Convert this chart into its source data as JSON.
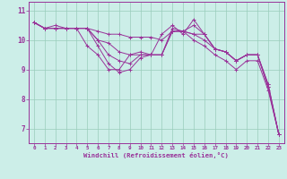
{
  "bg_color": "#cceee8",
  "grid_color": "#99ccbb",
  "line_color": "#993399",
  "xlabel": "Windchill (Refroidissement éolien,°C)",
  "xlabel_color": "#993399",
  "tick_color": "#993399",
  "spine_color": "#993399",
  "ylim": [
    6.5,
    11.3
  ],
  "xlim": [
    -0.5,
    23.5
  ],
  "yticks": [
    7,
    8,
    9,
    10,
    11
  ],
  "xticks": [
    0,
    1,
    2,
    3,
    4,
    5,
    6,
    7,
    8,
    9,
    10,
    11,
    12,
    13,
    14,
    15,
    16,
    17,
    18,
    19,
    20,
    21,
    22,
    23
  ],
  "series": [
    [
      10.6,
      10.4,
      10.4,
      10.4,
      10.4,
      10.4,
      10.3,
      10.2,
      10.2,
      10.1,
      10.1,
      10.1,
      10.0,
      10.3,
      10.3,
      10.5,
      10.2,
      9.7,
      9.6,
      9.3,
      9.5,
      9.5,
      8.5,
      6.8
    ],
    [
      10.6,
      10.4,
      10.5,
      10.4,
      10.4,
      10.4,
      10.0,
      9.9,
      9.6,
      9.5,
      9.5,
      9.5,
      10.2,
      10.5,
      10.2,
      10.7,
      10.2,
      9.7,
      9.6,
      9.3,
      9.5,
      9.5,
      8.4,
      6.8
    ],
    [
      10.6,
      10.4,
      10.4,
      10.4,
      10.4,
      9.8,
      9.5,
      9.0,
      9.0,
      9.5,
      9.6,
      9.5,
      9.5,
      10.4,
      10.3,
      10.2,
      10.2,
      9.7,
      9.6,
      9.3,
      9.5,
      9.5,
      8.5,
      6.8
    ],
    [
      10.6,
      10.4,
      10.4,
      10.4,
      10.4,
      10.4,
      9.8,
      9.2,
      8.9,
      9.0,
      9.4,
      9.5,
      9.5,
      10.3,
      10.3,
      10.2,
      10.0,
      9.7,
      9.6,
      9.3,
      9.5,
      9.5,
      8.4,
      6.8
    ],
    [
      10.6,
      10.4,
      10.4,
      10.4,
      10.4,
      10.4,
      10.0,
      9.5,
      9.3,
      9.2,
      9.5,
      9.5,
      9.5,
      10.3,
      10.3,
      10.0,
      9.8,
      9.5,
      9.3,
      9.0,
      9.3,
      9.3,
      8.3,
      6.8
    ]
  ]
}
